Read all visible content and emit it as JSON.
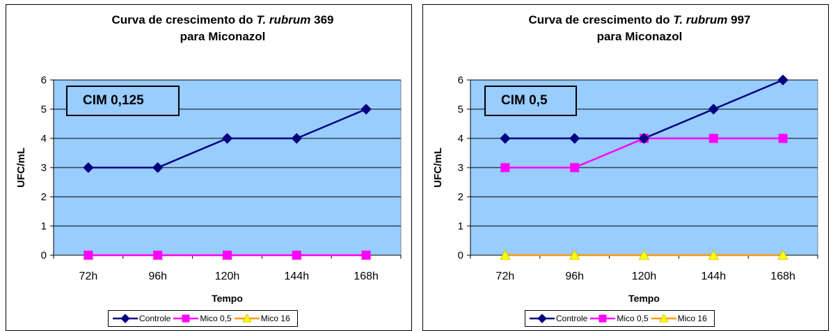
{
  "charts": [
    {
      "title_line1_prefix": "Curva de crescimento do ",
      "title_italic": "T. rubrum",
      "title_line1_suffix": " 369",
      "title_line2": "para Miconazol",
      "annotation": "CIM 0,125"
    },
    {
      "title_line1_prefix": "Curva de crescimento do ",
      "title_italic": "T. rubrum",
      "title_line1_suffix": " 997",
      "title_line2": "para Miconazol",
      "annotation": "CIM 0,5"
    }
  ],
  "chart_data": [
    {
      "type": "line",
      "title": "Curva de crescimento do T. rubrum 369 para Miconazol",
      "xlabel": "Tempo",
      "ylabel": "UFC/mL",
      "categories": [
        "72h",
        "96h",
        "120h",
        "144h",
        "168h"
      ],
      "yticks": [
        "0",
        "1",
        "2",
        "3",
        "4",
        "5",
        "6"
      ],
      "ylim": [
        0,
        6
      ],
      "grid": true,
      "legend_position": "bottom",
      "plot_background": "#99ccff",
      "series": [
        {
          "name": "Controle",
          "values": [
            3,
            3,
            4,
            4,
            5
          ],
          "color": "#000080",
          "marker": "diamond"
        },
        {
          "name": "Mico 0,5",
          "values": [
            0,
            0,
            0,
            0,
            0
          ],
          "color": "#ff00ff",
          "marker": "square"
        },
        {
          "name": "Mico 16",
          "values": [
            0,
            0,
            0,
            0,
            0
          ],
          "color": "#ff9900",
          "marker": "triangle",
          "marker_color": "#ffff00"
        }
      ]
    },
    {
      "type": "line",
      "title": "Curva de crescimento do T. rubrum 997 para Miconazol",
      "xlabel": "Tempo",
      "ylabel": "UFC/mL",
      "categories": [
        "72h",
        "96h",
        "120h",
        "144h",
        "168h"
      ],
      "yticks": [
        "0",
        "1",
        "2",
        "3",
        "4",
        "5",
        "6"
      ],
      "ylim": [
        0,
        6
      ],
      "grid": true,
      "legend_position": "bottom",
      "plot_background": "#99ccff",
      "series": [
        {
          "name": "Controle",
          "values": [
            4,
            4,
            4,
            5,
            6
          ],
          "color": "#000080",
          "marker": "diamond"
        },
        {
          "name": "Mico 0,5",
          "values": [
            3,
            3,
            4,
            4,
            4
          ],
          "color": "#ff00ff",
          "marker": "square"
        },
        {
          "name": "Mico 16",
          "values": [
            0,
            0,
            0,
            0,
            0
          ],
          "color": "#ff9900",
          "marker": "triangle",
          "marker_color": "#ffff00"
        }
      ]
    }
  ]
}
